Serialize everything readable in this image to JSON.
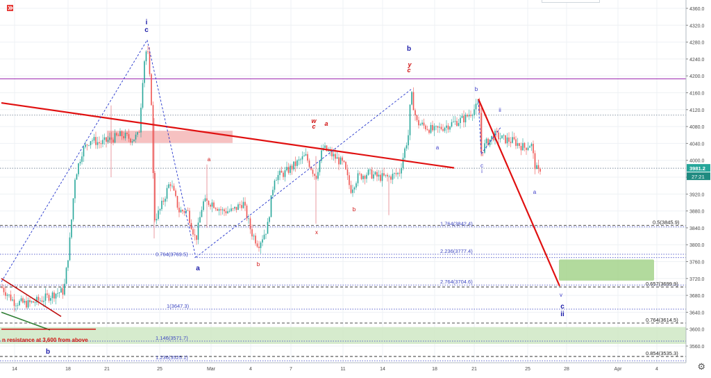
{
  "chart_data": {
    "type": "candlestick",
    "title": "",
    "price_axis": {
      "min": 3520,
      "max": 4380,
      "ticks": [
        "4360.0",
        "4320.0",
        "4280.0",
        "4240.0",
        "4200.0",
        "4160.0",
        "4120.0",
        "4080.0",
        "4040.0",
        "4000.0",
        "3960.0",
        "3920.0",
        "3880.0",
        "3840.0",
        "3800.0",
        "3760.0",
        "3720.0",
        "3680.0",
        "3640.0",
        "3600.0",
        "3560.0"
      ],
      "current_price_label": "3981.2",
      "countdown_label": "27:21",
      "current_price": 3981.2
    },
    "time_axis": {
      "ticks": [
        "14",
        "18",
        "21",
        "25",
        "Mar",
        "4",
        "7",
        "11",
        "14",
        "18",
        "21",
        "25",
        "28",
        "Apr",
        "4"
      ],
      "gridlines": true
    },
    "horizontal_levels": [
      {
        "price": 4193,
        "style": "solid",
        "color": "#9c27b0"
      },
      {
        "price": 4107,
        "style": "dotted",
        "color": "#7a8a9a"
      },
      {
        "price": 3981.2,
        "style": "dotted",
        "color": "#7a8a9a"
      },
      {
        "price": 3845.9,
        "style": "dashed",
        "color": "#333333",
        "label": "0.5(3845.9)"
      },
      {
        "price": 3842.4,
        "style": "dotted",
        "color": "#4a52c8",
        "label": "1.764(3842.4)"
      },
      {
        "price": 3777.4,
        "style": "dotted",
        "color": "#4a52c8",
        "label": "2.236(3777.4)"
      },
      {
        "price": 3769.5,
        "style": "dotted",
        "color": "#4a52c8",
        "label": "0.764(3769.5)"
      },
      {
        "price": 3704.6,
        "style": "dotted",
        "color": "#4a52c8",
        "label": "2.764(3704.6)"
      },
      {
        "price": 3699.9,
        "style": "dashed",
        "color": "#333333",
        "label": "0.657(3699.9)"
      },
      {
        "price": 3647.3,
        "style": "dotted",
        "color": "#4a52c8",
        "label": "1(3647.3)"
      },
      {
        "price": 3614.5,
        "style": "dashed",
        "color": "#333333",
        "label": "0.764(3614.5)"
      },
      {
        "price": 3571.7,
        "style": "dotted",
        "color": "#4a52c8",
        "label": "1.146(3571.7)"
      },
      {
        "price": 3535.3,
        "style": "dashed",
        "color": "#333333",
        "label": "0.854(3535.3)"
      },
      {
        "price": 3525.1,
        "style": "dotted",
        "color": "#4a52c8",
        "label": "1.236(3525.1)"
      }
    ],
    "zones": [
      {
        "name": "pink-resistance",
        "from": "Feb 21",
        "to": "Mar 2",
        "price_low": 4041,
        "price_high": 4070,
        "color": "#f4b6b6"
      },
      {
        "name": "green-target",
        "from": "Mar 22",
        "to": "Mar 26",
        "price_low": 3715,
        "price_high": 3765,
        "color": "#a5d48c"
      },
      {
        "name": "green-support-band",
        "from": "Feb 13",
        "to": "Apr 6",
        "price_low": 3565,
        "price_high": 3605,
        "color": "#cfe8c4"
      }
    ],
    "trendlines": [
      {
        "name": "main-downtrend",
        "color": "#e01010",
        "from": {
          "date": "Feb 13",
          "price": 4136
        },
        "to": {
          "date": "Mar 19",
          "price": 3982
        }
      },
      {
        "name": "small-downtrend",
        "color": "#c01010",
        "from": {
          "date": "Feb 13",
          "price": 3720
        },
        "to": {
          "date": "Feb 17",
          "price": 3630
        }
      },
      {
        "name": "support-line",
        "color": "#2e7d32",
        "from": {
          "date": "Feb 13",
          "price": 3640
        },
        "to": {
          "date": "Feb 16",
          "price": 3600
        }
      },
      {
        "name": "projection",
        "color": "#e01010",
        "from": {
          "date": "Mar 21",
          "price": 4145
        },
        "to": {
          "date": "Mar 27",
          "price": 3702
        }
      }
    ],
    "wave_labels": [
      {
        "text": "i",
        "color": "#1a1aa8",
        "bold": true
      },
      {
        "text": "c",
        "color": "#1a1aa8",
        "bold": true
      },
      {
        "text": "a",
        "color": "#1a1aa8",
        "bold": true
      },
      {
        "text": "b",
        "color": "#1a1aa8",
        "bold": true
      },
      {
        "text": "b",
        "color": "#1a1aa8",
        "bold": true
      },
      {
        "text": "y",
        "color": "#d01010",
        "bold": true
      },
      {
        "text": "c",
        "color": "#d01010",
        "bold": true
      },
      {
        "text": "w",
        "color": "#d01010",
        "bold": true
      },
      {
        "text": "c",
        "color": "#d01010",
        "bold": true
      },
      {
        "text": "a",
        "color": "#d01010",
        "bold": true
      },
      {
        "text": "a",
        "color": "#d01010",
        "bold": false
      },
      {
        "text": "b",
        "color": "#d01010",
        "bold": false
      },
      {
        "text": "x",
        "color": "#d01010",
        "bold": false
      },
      {
        "text": "b",
        "color": "#d01010",
        "bold": false
      },
      {
        "text": "b",
        "color": "#3c3cc8",
        "bold": false
      },
      {
        "text": "a",
        "color": "#3c3cc8",
        "bold": false
      },
      {
        "text": "c",
        "color": "#3c3cc8",
        "bold": false
      },
      {
        "text": "i",
        "color": "#3c3cc8",
        "bold": false
      },
      {
        "text": "ii",
        "color": "#3c3cc8",
        "bold": false
      },
      {
        "text": "a",
        "color": "#3c3cc8",
        "bold": false
      },
      {
        "text": "v",
        "color": "#3c3cc8",
        "bold": false
      },
      {
        "text": "c",
        "color": "#1a1aa8",
        "bold": true
      },
      {
        "text": "ii",
        "color": "#1a1aa8",
        "bold": true
      }
    ],
    "annotation": "n resistance at 3,600 from above",
    "grid": true,
    "colors": {
      "up_candle": "#26a69a",
      "down_candle": "#ef5350",
      "wick": "#555555",
      "price_tag": "#26a69a"
    }
  }
}
